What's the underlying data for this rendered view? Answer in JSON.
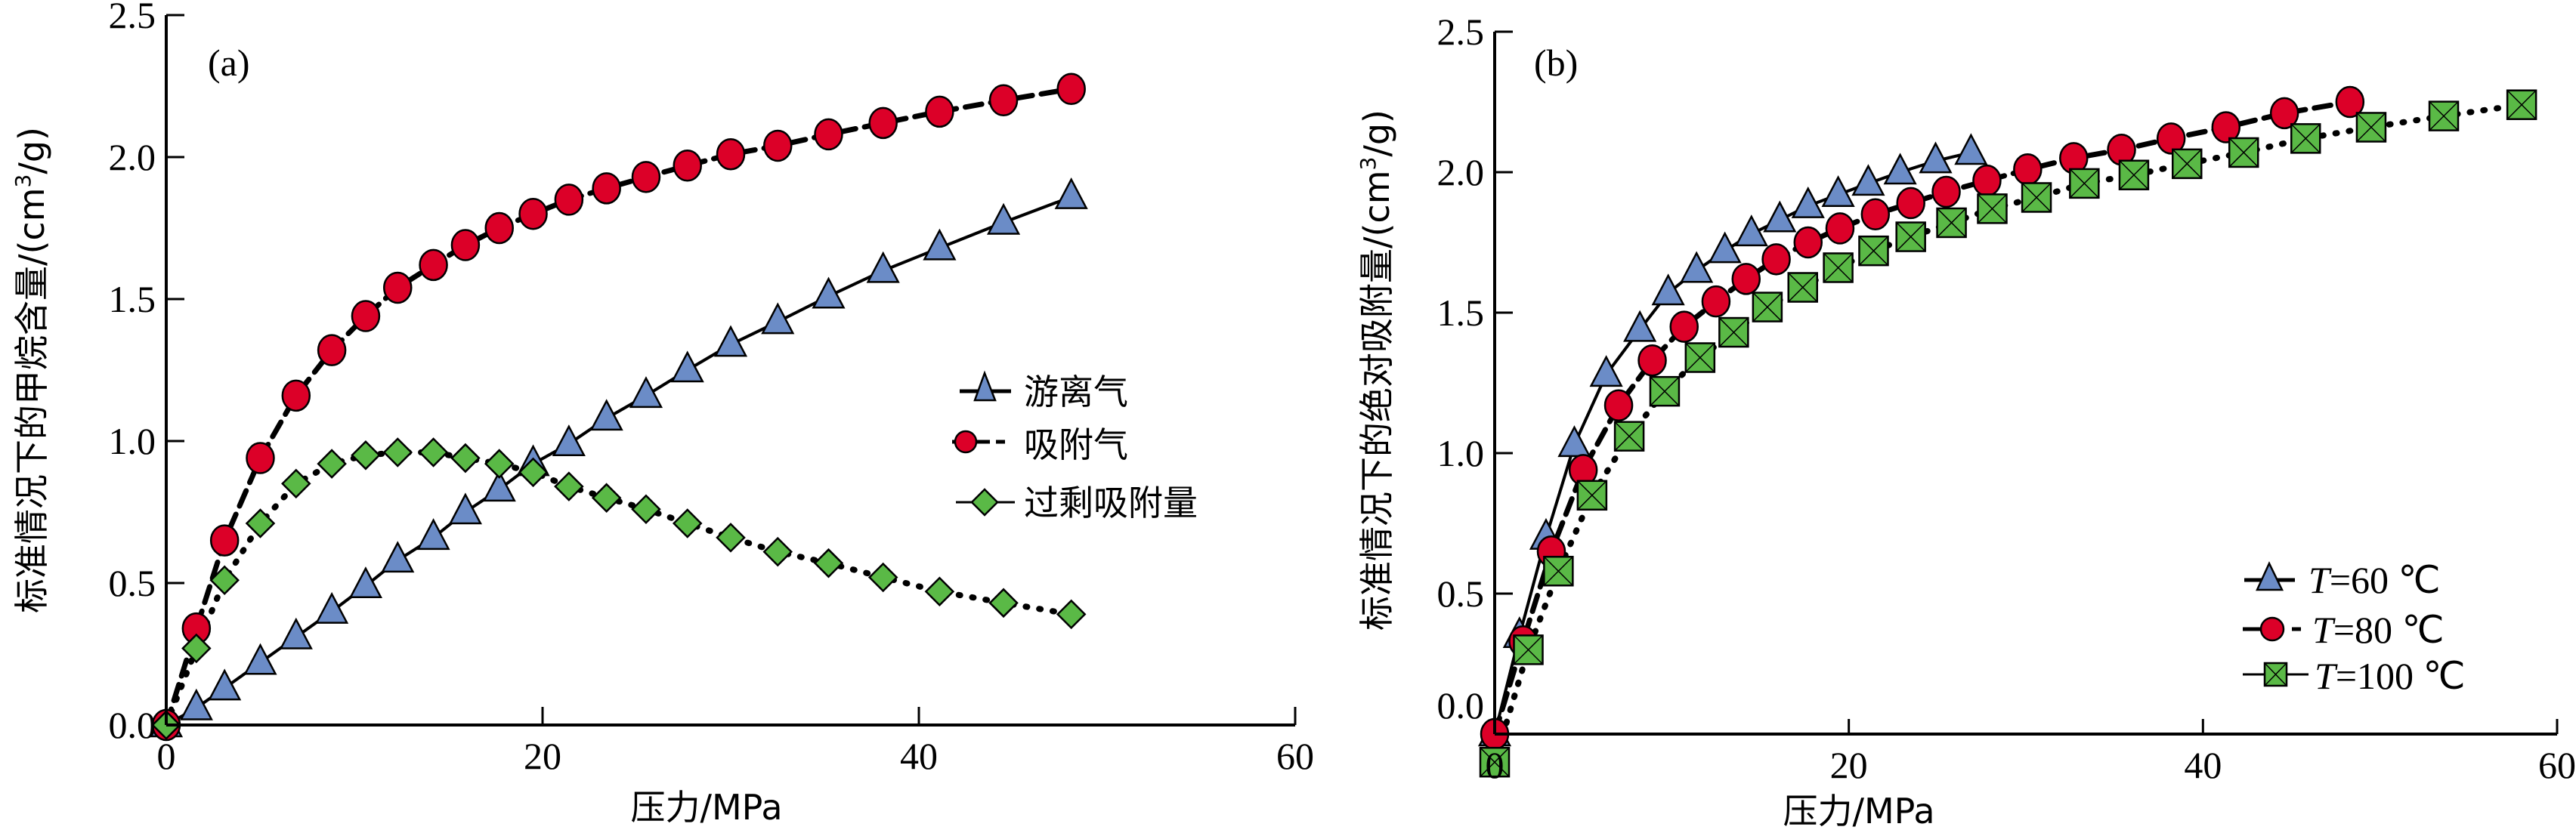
{
  "chart_data": [
    {
      "type": "line",
      "panel_label": "(a)",
      "title": "",
      "xlabel": "压力/MPa",
      "ylabel": "标准情况下的甲烷含量/(cm³/g)",
      "ylabel_parts": {
        "main": "标准情况下的甲烷含量/(cm",
        "sup": "3",
        "tail": "/g)"
      },
      "xlim": [
        0,
        60
      ],
      "ylim": [
        0,
        2.5
      ],
      "xticks": [
        0,
        20,
        40,
        60
      ],
      "xtick_labels": [
        "0",
        "20",
        "40",
        "60"
      ],
      "yticks": [
        0,
        0.5,
        1.0,
        1.5,
        2.0,
        2.5
      ],
      "ytick_labels": [
        "0.0",
        "0.5",
        "1.0",
        "1.5",
        "2.0",
        "2.5"
      ],
      "grid": false,
      "legend_position": "center-right",
      "series": [
        {
          "name": "游离气",
          "marker": "triangle",
          "line_style": "solid",
          "color": "#6b8cc7",
          "x": [
            0,
            1.6,
            3.1,
            5.0,
            6.9,
            8.8,
            10.6,
            12.3,
            14.2,
            15.9,
            17.7,
            19.5,
            21.4,
            23.4,
            25.5,
            27.7,
            30.0,
            32.5,
            35.2,
            38.1,
            41.1,
            44.5,
            48.1
          ],
          "values": [
            0,
            0.06,
            0.13,
            0.22,
            0.31,
            0.4,
            0.49,
            0.58,
            0.66,
            0.75,
            0.83,
            0.92,
            0.99,
            1.08,
            1.16,
            1.25,
            1.34,
            1.42,
            1.51,
            1.6,
            1.68,
            1.77,
            1.86
          ]
        },
        {
          "name": "吸附气",
          "marker": "circle",
          "line_style": "dashed",
          "color": "#dc0028",
          "x": [
            0,
            1.6,
            3.1,
            5.0,
            6.9,
            8.8,
            10.6,
            12.3,
            14.2,
            15.9,
            17.7,
            19.5,
            21.4,
            23.4,
            25.5,
            27.7,
            30.0,
            32.5,
            35.2,
            38.1,
            41.1,
            44.5,
            48.1
          ],
          "values": [
            0,
            0.34,
            0.65,
            0.94,
            1.16,
            1.32,
            1.44,
            1.54,
            1.62,
            1.69,
            1.75,
            1.8,
            1.85,
            1.89,
            1.93,
            1.97,
            2.01,
            2.04,
            2.08,
            2.12,
            2.16,
            2.2,
            2.24
          ]
        },
        {
          "name": "过剩吸附量",
          "marker": "diamond",
          "line_style": "dotted",
          "color": "#5ab946",
          "x": [
            0,
            1.6,
            3.1,
            5.0,
            6.9,
            8.8,
            10.6,
            12.3,
            14.2,
            15.9,
            17.7,
            19.5,
            21.4,
            23.4,
            25.5,
            27.7,
            30.0,
            32.5,
            35.2,
            38.1,
            41.1,
            44.5,
            48.1
          ],
          "values": [
            0,
            0.27,
            0.51,
            0.71,
            0.85,
            0.92,
            0.95,
            0.96,
            0.96,
            0.94,
            0.92,
            0.89,
            0.84,
            0.8,
            0.76,
            0.71,
            0.66,
            0.61,
            0.57,
            0.52,
            0.47,
            0.43,
            0.39
          ]
        }
      ]
    },
    {
      "type": "line",
      "panel_label": "(b)",
      "title": "",
      "xlabel": "压力/MPa",
      "ylabel": "标准情况下的绝对吸附量/(cm³/g)",
      "ylabel_parts": {
        "main": "标准情况下的绝对吸附量/(cm",
        "sup": "3",
        "tail": "/g)"
      },
      "xlim": [
        0,
        60
      ],
      "ylim": [
        0,
        2.5
      ],
      "xticks": [
        0,
        20,
        40,
        60
      ],
      "xtick_labels": [
        "0",
        "20",
        "40",
        "60"
      ],
      "yticks": [
        0,
        0.5,
        1.0,
        1.5,
        2.0,
        2.5
      ],
      "ytick_labels": [
        "0.0",
        "0.5",
        "1.0",
        "1.5",
        "2.0",
        "2.5"
      ],
      "grid": false,
      "legend_position": "bottom-right",
      "series": [
        {
          "name": "T=60 ℃",
          "legend_var": "T",
          "legend_rest": "=60 ℃",
          "marker": "triangle",
          "line_style": "solid",
          "color": "#6b8cc7",
          "x": [
            0,
            1.4,
            2.9,
            4.5,
            6.3,
            8.2,
            9.8,
            11.4,
            13.0,
            14.5,
            16.1,
            17.7,
            19.4,
            21.1,
            22.9,
            24.9,
            26.9
          ],
          "values": [
            0,
            0.35,
            0.7,
            1.03,
            1.28,
            1.44,
            1.57,
            1.65,
            1.72,
            1.78,
            1.83,
            1.88,
            1.92,
            1.96,
            2.0,
            2.04,
            2.07
          ]
        },
        {
          "name": "T=80 ℃",
          "legend_var": "T",
          "legend_rest": "=80 ℃",
          "marker": "circle",
          "line_style": "dashed",
          "color": "#dc0028",
          "x": [
            0,
            1.6,
            3.2,
            5.0,
            7.0,
            8.9,
            10.7,
            12.5,
            14.2,
            15.9,
            17.7,
            19.5,
            21.5,
            23.5,
            25.5,
            27.8,
            30.1,
            32.7,
            35.4,
            38.2,
            41.3,
            44.6,
            48.3
          ],
          "values": [
            0,
            0.33,
            0.65,
            0.94,
            1.17,
            1.33,
            1.45,
            1.54,
            1.62,
            1.69,
            1.75,
            1.8,
            1.85,
            1.89,
            1.93,
            1.97,
            2.01,
            2.05,
            2.08,
            2.12,
            2.16,
            2.21,
            2.25
          ]
        },
        {
          "name": "T=100 ℃",
          "legend_var": "T",
          "legend_rest": "=100 ℃",
          "marker": "square-x",
          "line_style": "dotted",
          "color": "#5ab946",
          "x": [
            0,
            1.9,
            3.6,
            5.5,
            7.6,
            9.6,
            11.6,
            13.5,
            15.4,
            17.4,
            19.4,
            21.4,
            23.5,
            25.8,
            28.1,
            30.6,
            33.3,
            36.1,
            39.1,
            42.3,
            45.8,
            49.5,
            53.6,
            58.0
          ],
          "values": [
            -0.1,
            0.3,
            0.58,
            0.85,
            1.06,
            1.22,
            1.34,
            1.43,
            1.52,
            1.59,
            1.66,
            1.72,
            1.77,
            1.82,
            1.87,
            1.91,
            1.96,
            1.99,
            2.03,
            2.07,
            2.12,
            2.16,
            2.2,
            2.24
          ]
        }
      ]
    }
  ]
}
